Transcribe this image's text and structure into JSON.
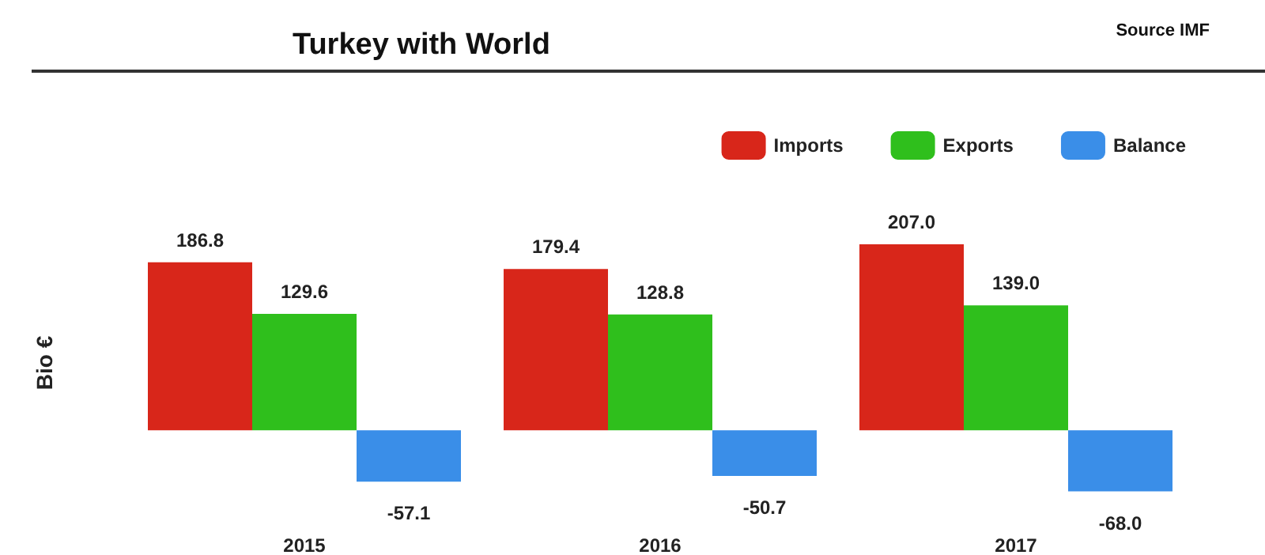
{
  "chart_data": {
    "type": "bar",
    "title": "Turkey with World",
    "ylabel": "Bio €",
    "annotations": [
      "Source IMF"
    ],
    "categories": [
      "2015",
      "2016",
      "2017"
    ],
    "series": [
      {
        "name": "Imports",
        "color": "#d8261a",
        "values": [
          186.8,
          179.4,
          207.0
        ],
        "value_labels": [
          "186.8",
          "179.4",
          "207.0"
        ]
      },
      {
        "name": "Exports",
        "color": "#2fbf1c",
        "values": [
          129.6,
          128.8,
          139.0
        ],
        "value_labels": [
          "129.6",
          "128.8",
          "139.0"
        ]
      },
      {
        "name": "Balance",
        "color": "#3a8ee8",
        "values": [
          -57.1,
          -50.7,
          -68.0
        ],
        "value_labels": [
          "-57.1",
          "-50.7",
          "-68.0"
        ]
      }
    ],
    "legend": "top right",
    "grid": false
  }
}
